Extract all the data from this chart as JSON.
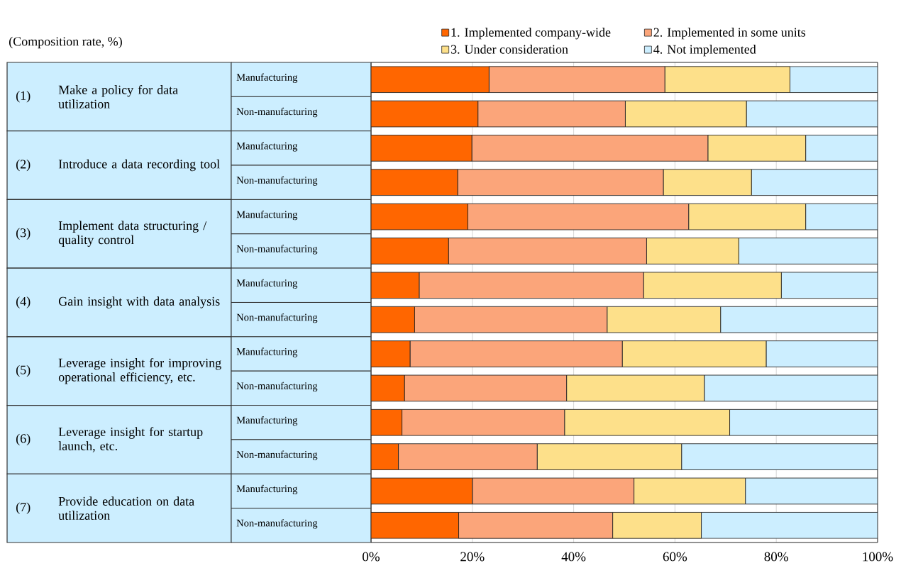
{
  "chart_data": {
    "type": "bar",
    "orientation": "horizontal",
    "stacked": true,
    "subtitle": "(Composition rate, %)",
    "annotations": [
      "(1)",
      "Make a policy for data utilization",
      "(2)",
      "Introduce a data recording tool",
      "(3)",
      "Implement data structuring / quality control",
      "(4)",
      "Gain insight with data analysis",
      "(5)",
      "Leverage insight for improving operational efficiency,  etc.",
      "(6)",
      "Leverage insight for startup launch, etc.",
      "(7)",
      "Provide education on data utilization"
    ],
    "categories": [
      "Manufacturing",
      "Non-manufacturing",
      "Manufacturing",
      "Non-manufacturing",
      "Manufacturing",
      "Non-manufacturing",
      "Manufacturing",
      "Non-manufacturing",
      "Manufacturing",
      "Non-manufacturing",
      "Manufacturing",
      "Non-manufacturing",
      "Manufacturing",
      "Non-manufacturing"
    ],
    "series": [
      {
        "name": "1. Implemented company-wide",
        "color": "#ff6600",
        "values": [
          23.3,
          21.1,
          19.9,
          17.1,
          19.1,
          15.3,
          9.5,
          8.6,
          7.7,
          6.6,
          6.1,
          5.4,
          20.0,
          17.3
        ]
      },
      {
        "name": "2. Implemented in some units",
        "color": "#fba57a",
        "values": [
          34.7,
          29.1,
          46.6,
          40.6,
          43.6,
          39.1,
          44.3,
          38.0,
          41.9,
          32.0,
          32.1,
          27.4,
          31.9,
          30.4
        ]
      },
      {
        "name": "3. Under consideration",
        "color": "#fde08a",
        "values": [
          24.7,
          23.9,
          19.3,
          17.4,
          23.1,
          18.2,
          27.2,
          22.4,
          28.4,
          27.2,
          32.6,
          28.5,
          22.0,
          17.5
        ]
      },
      {
        "name": "4. Not implemented",
        "color": "#cceeff",
        "values": [
          17.3,
          25.9,
          14.2,
          24.9,
          14.2,
          27.4,
          19.0,
          31.0,
          22.0,
          34.2,
          29.2,
          38.7,
          26.1,
          34.8
        ]
      }
    ],
    "xlim": [
      0,
      100
    ],
    "xticks": [
      {
        "value": 0,
        "label": "0%"
      },
      {
        "value": 20,
        "label": "20%"
      },
      {
        "value": 40,
        "label": "40%"
      },
      {
        "value": 60,
        "label": "60%"
      },
      {
        "value": 80,
        "label": "80%"
      },
      {
        "value": 100,
        "label": "100%"
      }
    ],
    "grid": "x",
    "legend": "top"
  }
}
